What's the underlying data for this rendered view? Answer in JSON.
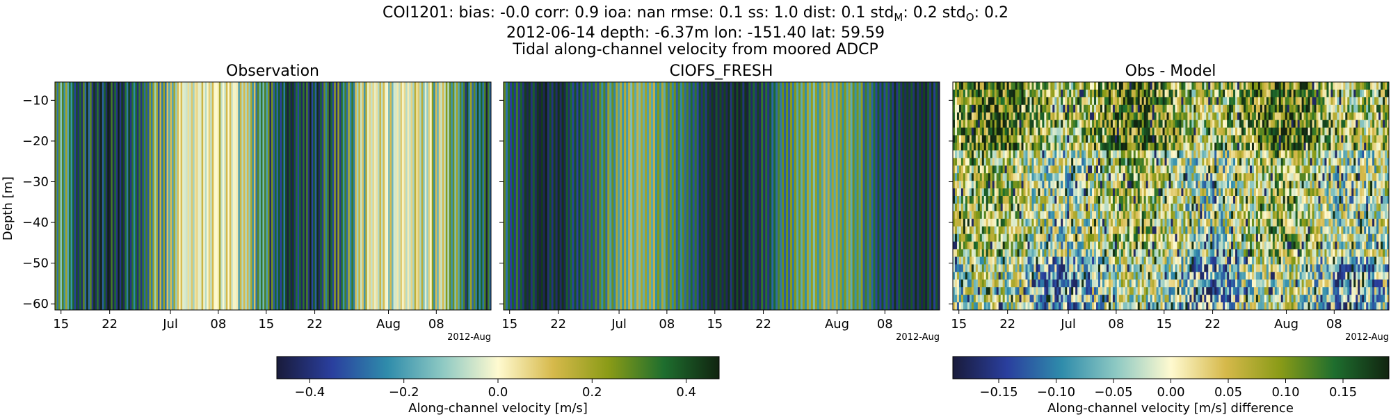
{
  "figure": {
    "title_lines": [
      "COI1201: bias: -0.0  corr: 0.9  ioa: nan  rmse: 0.1  ss: 1.0  dist: 0.1  std",
      "2012-06-14 depth: -6.37m lon: -151.40 lat: 59.59",
      "Tidal along-channel velocity from moored ADCP"
    ],
    "std_parts": {
      "m_sub": "M",
      "m_val": ": 0.2  std",
      "o_sub": "O",
      "o_val": ": 0.2"
    }
  },
  "chart_data": [
    {
      "type": "heatmap",
      "title": "Observation",
      "ylabel": "Depth [m]",
      "yticks": [
        -10,
        -20,
        -30,
        -40,
        -50,
        -60
      ],
      "ylim": [
        -61.5,
        -5.5
      ],
      "xticks": [
        "15",
        "22",
        "Jul",
        "08",
        "15",
        "22",
        "Aug",
        "08"
      ],
      "x_offset_label": "2012-Aug",
      "x_range": [
        "2012-06-14",
        "2012-08-14"
      ],
      "colormap": "Along-channel velocity [m/s]"
    },
    {
      "type": "heatmap",
      "title": "CIOFS_FRESH",
      "ylim": [
        -61.5,
        -5.5
      ],
      "xticks": [
        "15",
        "22",
        "Jul",
        "08",
        "15",
        "22",
        "Aug",
        "08"
      ],
      "x_offset_label": "2012-Aug",
      "x_range": [
        "2012-06-14",
        "2012-08-14"
      ],
      "colormap": "Along-channel velocity [m/s]"
    },
    {
      "type": "heatmap",
      "title": "Obs - Model",
      "ylim": [
        -61.5,
        -5.5
      ],
      "xticks": [
        "15",
        "22",
        "Jul",
        "08",
        "15",
        "22",
        "Aug",
        "08"
      ],
      "x_offset_label": "2012-Aug",
      "x_range": [
        "2012-06-14",
        "2012-08-14"
      ],
      "colormap": "Along-channel velocity [m/s] difference"
    }
  ],
  "colorbars": [
    {
      "label": "Along-channel velocity [m/s]",
      "range": [
        -0.47,
        0.47
      ],
      "ticks": [
        "−0.4",
        "−0.2",
        "0.0",
        "0.2",
        "0.4"
      ],
      "tick_values": [
        -0.4,
        -0.2,
        0.0,
        0.2,
        0.4
      ]
    },
    {
      "label": "Along-channel velocity [m/s] difference",
      "range": [
        -0.19,
        0.19
      ],
      "ticks": [
        "−0.15",
        "−0.10",
        "−0.05",
        "0.00",
        "0.05",
        "0.10",
        "0.15"
      ],
      "tick_values": [
        -0.15,
        -0.1,
        -0.05,
        0.0,
        0.05,
        0.1,
        0.15
      ]
    }
  ],
  "colors": {
    "cmap_stops": [
      "#191b3b",
      "#2a3f9e",
      "#2f8cab",
      "#8ec9c3",
      "#fffad0",
      "#d6b94b",
      "#8a9b17",
      "#1e6e2e",
      "#112410"
    ]
  }
}
